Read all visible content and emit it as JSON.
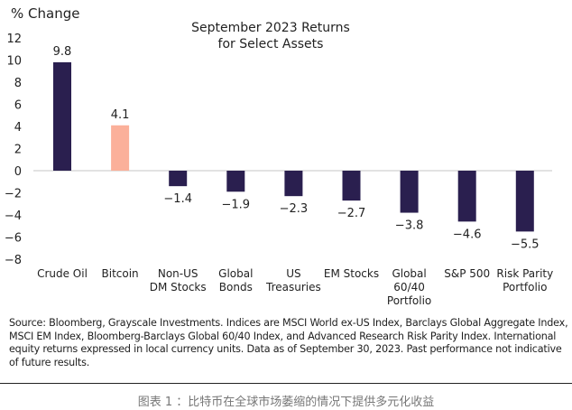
{
  "chart_data": {
    "type": "bar",
    "title": "September 2023 Returns\nfor Select Assets",
    "title_lines": [
      "September 2023 Returns",
      "for Select Assets"
    ],
    "ylabel": "% Change",
    "xlabel": "",
    "ylim": [
      -8,
      12
    ],
    "yticks": [
      12,
      10,
      8,
      6,
      4,
      2,
      0,
      -2,
      -4,
      -6,
      -8
    ],
    "grid": false,
    "categories": [
      [
        "Crude Oil"
      ],
      [
        "Bitcoin"
      ],
      [
        "Non-US",
        "DM Stocks"
      ],
      [
        "Global",
        "Bonds"
      ],
      [
        "US",
        "Treasuries"
      ],
      [
        "EM Stocks"
      ],
      [
        "Global",
        "60/40",
        "Portfolio"
      ],
      [
        "S&P 500"
      ],
      [
        "Risk Parity",
        "Portfolio"
      ]
    ],
    "values": [
      9.8,
      4.1,
      -1.4,
      -1.9,
      -2.3,
      -2.7,
      -3.8,
      -4.6,
      -5.5
    ],
    "value_labels": [
      "9.8",
      "4.1",
      "-1.4",
      "-1.9",
      "-2.3",
      "-2.7",
      "-3.8",
      "-4.6",
      "-5.5"
    ],
    "highlight_index": 1,
    "colors": {
      "default": "#2a1f4f",
      "highlight": "#fbb09a",
      "zero_line": "#d9d9d9"
    }
  },
  "source_note": "Source: Bloomberg, Grayscale Investments. Indices are MSCI World ex-US Index, Barclays Global Aggregate Index, MSCI EM Index, Bloomberg-Barclays Global 60/40 Index, and Advanced Research Risk Parity Index. International equity returns expressed in local currency units. Data as of September 30, 2023. Past performance not indicative of future results.",
  "caption": "图表 1 ：比特币在全球市场萎缩的情况下提供多元化收益"
}
